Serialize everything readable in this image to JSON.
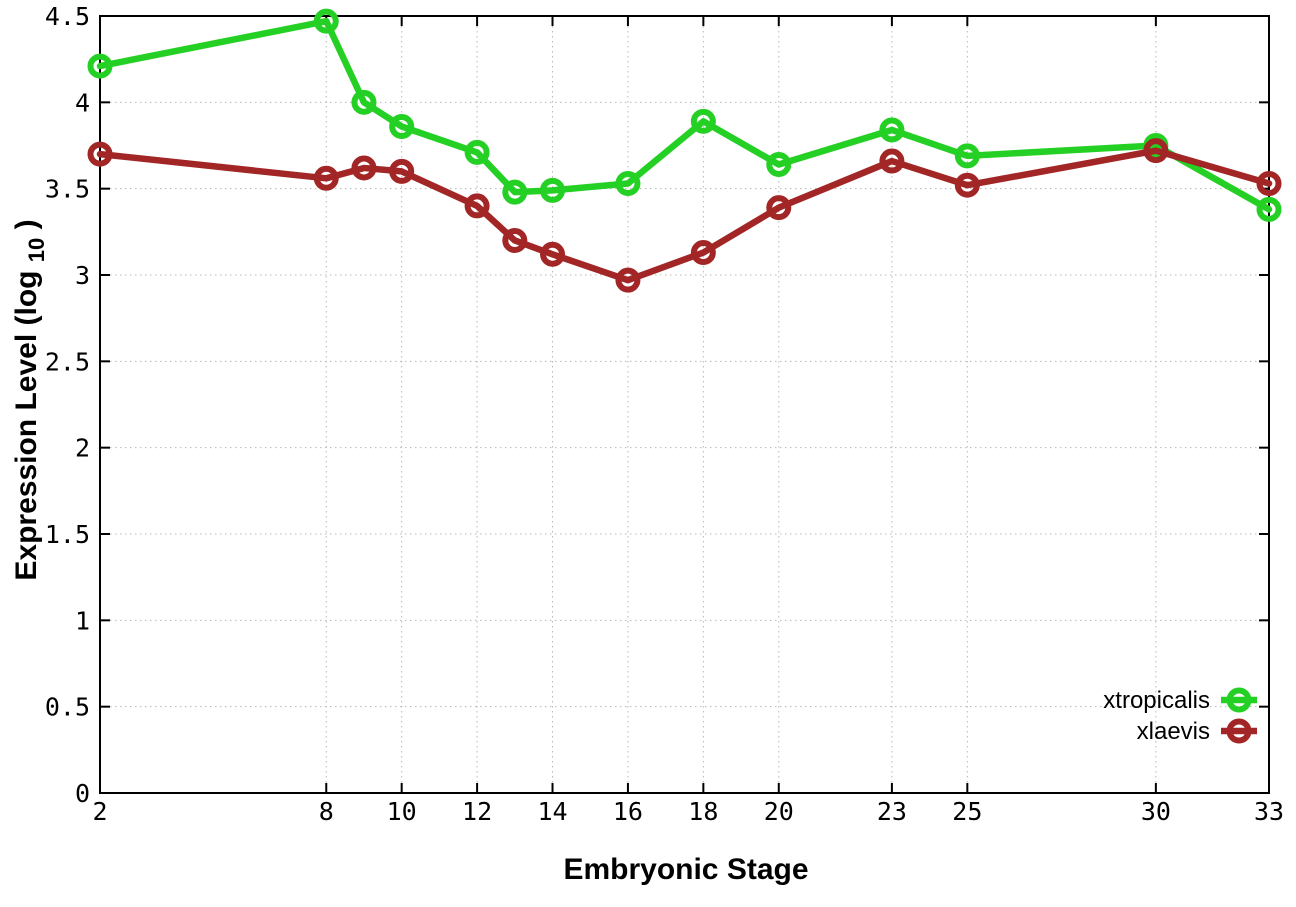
{
  "chart_data": {
    "type": "line",
    "title": "",
    "xlabel": "Embryonic Stage",
    "ylabel": "Expression Level (log10)",
    "ylabel_parts": {
      "pre": "Expression Level (log",
      "sub": "10",
      "post": ")"
    },
    "x": [
      2,
      8,
      9,
      10,
      12,
      13,
      14,
      16,
      18,
      20,
      23,
      25,
      30,
      33
    ],
    "series": [
      {
        "name": "xtropicalis",
        "color": "#25d025",
        "values": [
          4.21,
          4.47,
          4.0,
          3.86,
          3.71,
          3.48,
          3.49,
          3.53,
          3.89,
          3.64,
          3.84,
          3.69,
          3.75,
          3.38
        ]
      },
      {
        "name": "xlaevis",
        "color": "#a32626",
        "values": [
          3.7,
          3.56,
          3.62,
          3.6,
          3.4,
          3.2,
          3.12,
          2.97,
          3.13,
          3.39,
          3.66,
          3.52,
          3.72,
          3.53
        ]
      }
    ],
    "xticks": [
      2,
      8,
      10,
      12,
      14,
      16,
      18,
      20,
      23,
      25,
      30,
      33
    ],
    "yticks": [
      0,
      0.5,
      1,
      1.5,
      2,
      2.5,
      3,
      3.5,
      4,
      4.5
    ],
    "xlim": [
      2,
      33
    ],
    "ylim": [
      0,
      4.5
    ],
    "grid": true,
    "legend_position": "bottom-right",
    "colors": {
      "series_green": "#25d025",
      "series_red": "#a32626",
      "grid": "#b8b8b8",
      "axis": "#000000",
      "background": "#ffffff"
    }
  }
}
